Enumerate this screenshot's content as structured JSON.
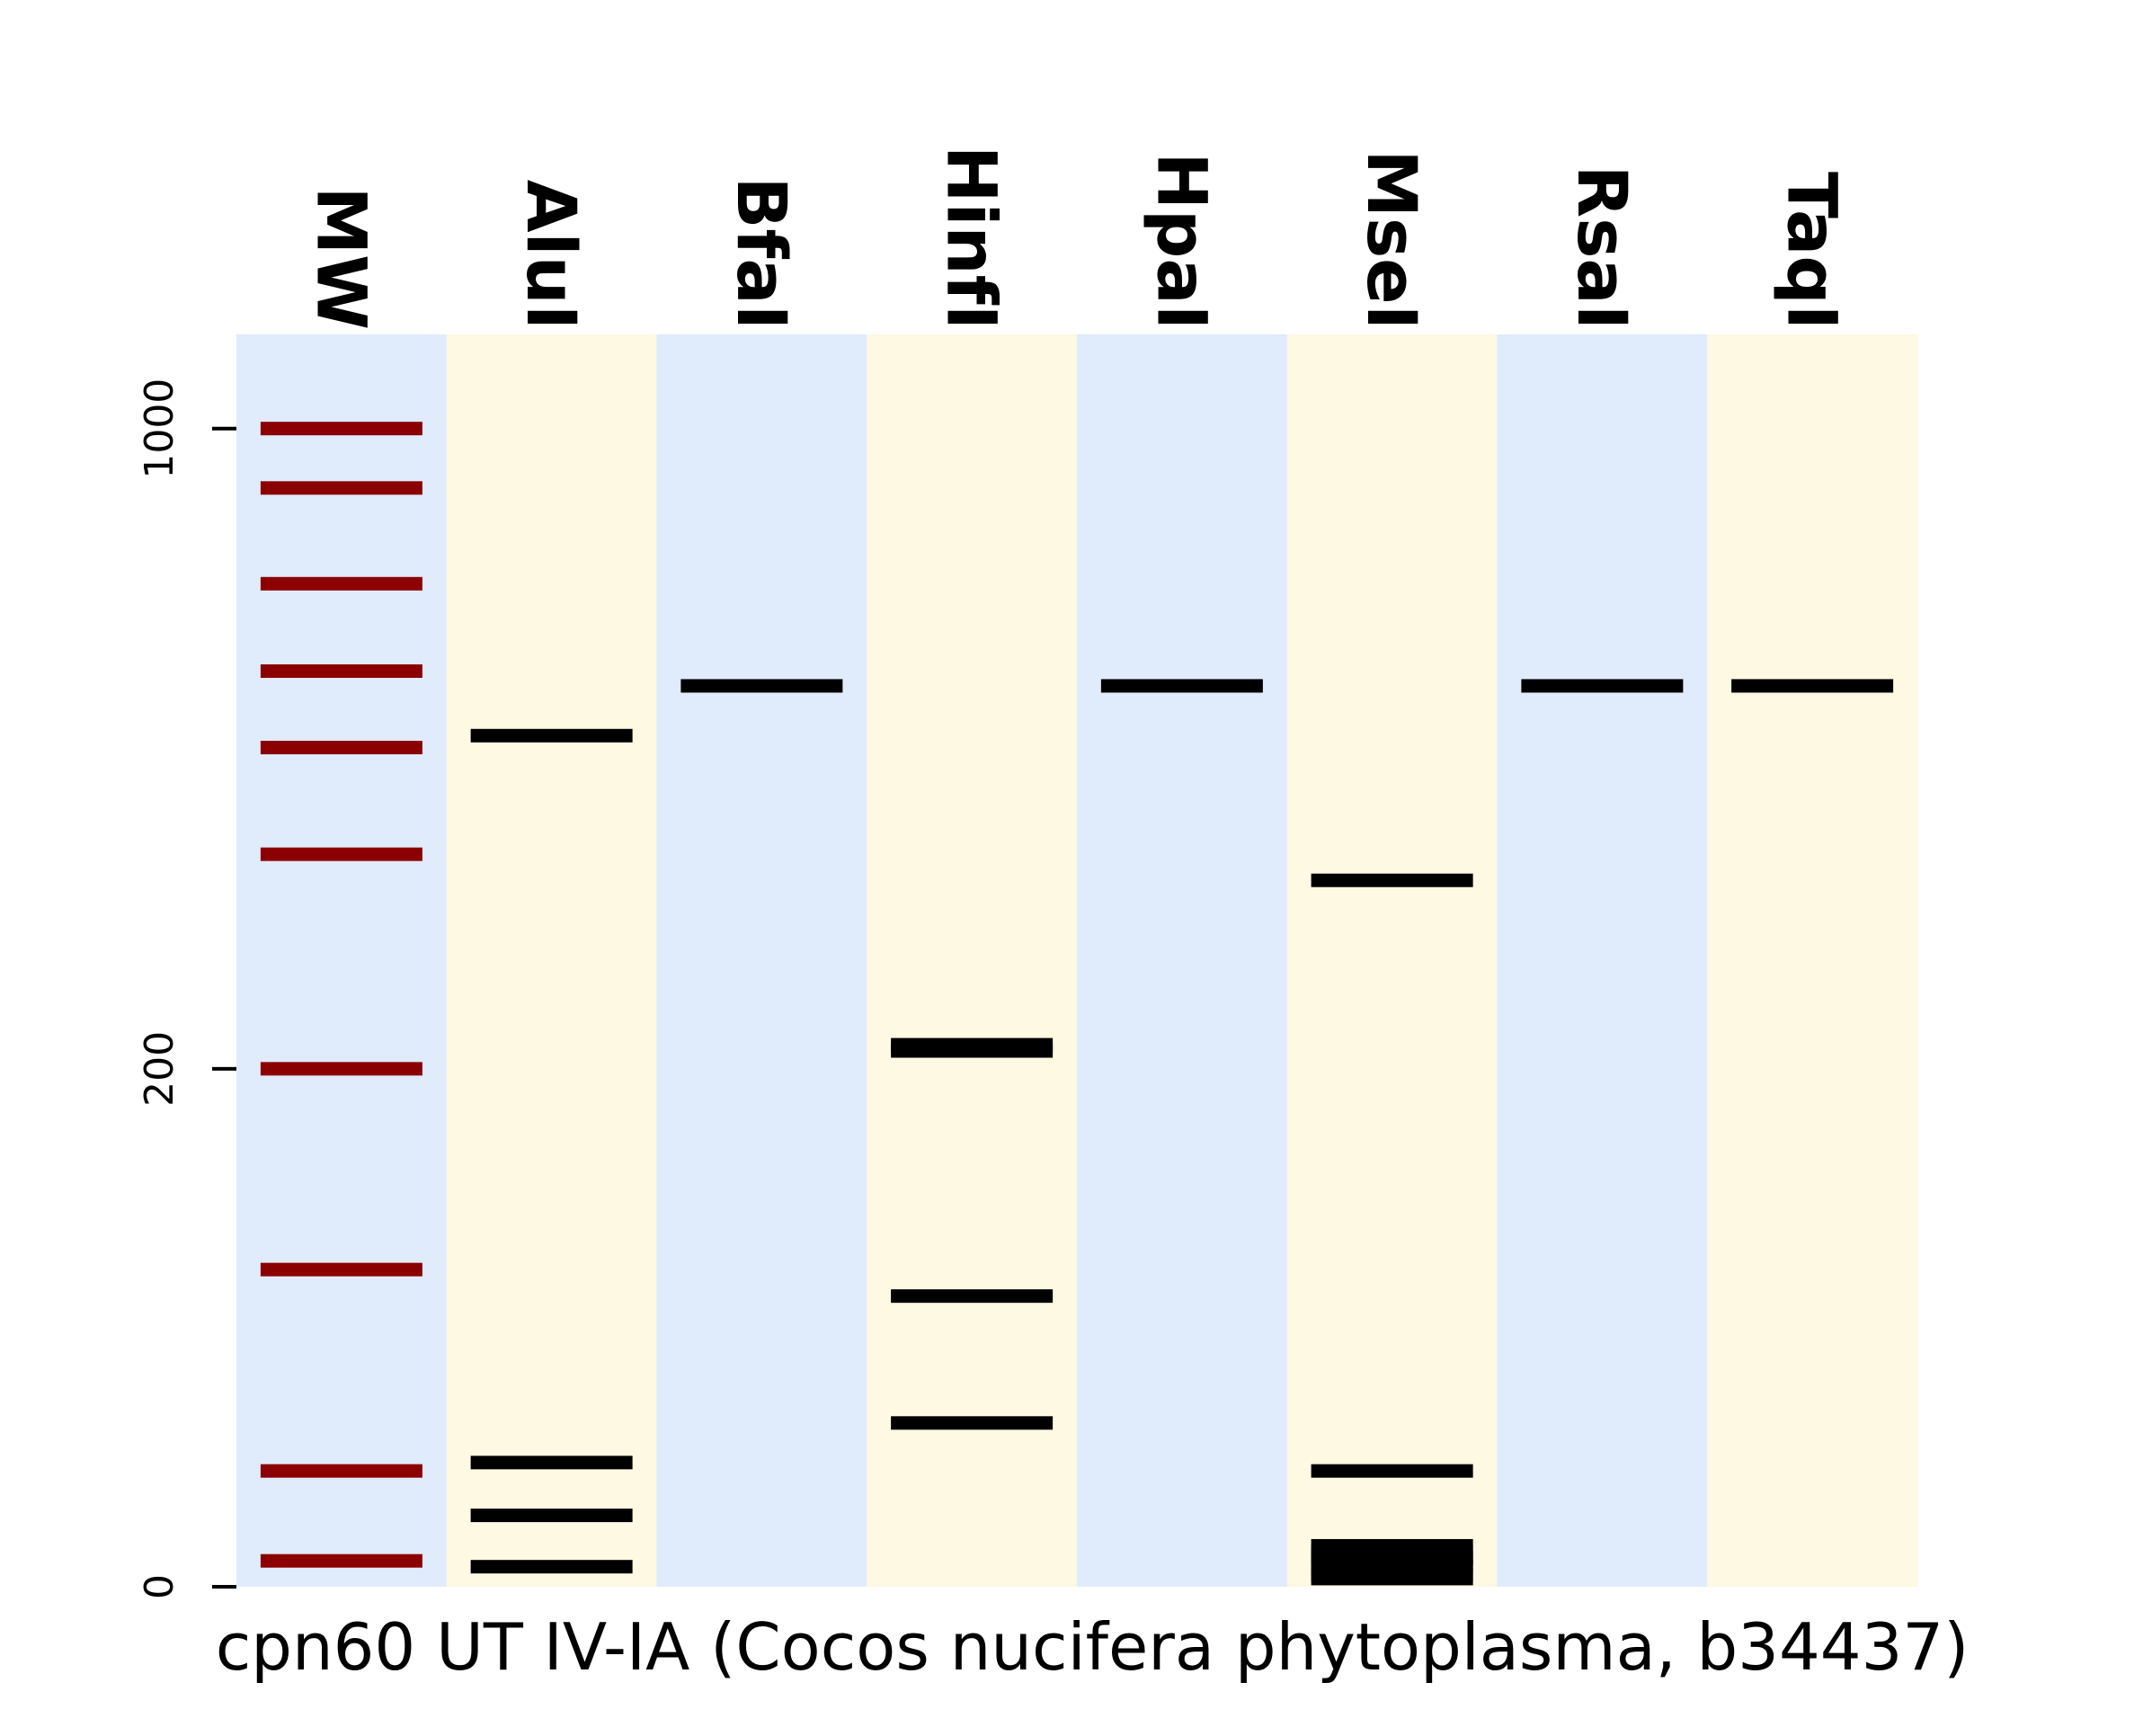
{
  "chart_data": {
    "type": "gel",
    "title": "cpn60 UT IV-IA (Cocos nucifera phytoplasma, b34437)",
    "yscale": "sqrt",
    "ylim": [
      0,
      1200
    ],
    "yticks": [
      {
        "value": 0,
        "label": "0"
      },
      {
        "value": 200,
        "label": "200"
      },
      {
        "value": 1000,
        "label": "1000"
      }
    ],
    "lane_colors": [
      "#e0ebfc",
      "#fdf9e3"
    ],
    "marker_band_color": "#8b0000",
    "band_color": "#000000",
    "lanes": [
      {
        "name": "MW",
        "marker": true,
        "bands": [
          1000,
          900,
          750,
          625,
          525,
          400,
          200,
          75,
          10,
          0.5
        ]
      },
      {
        "name": "AluI",
        "bands": [
          540,
          11.5,
          0.3,
          3.8
        ]
      },
      {
        "name": "BfaI",
        "bands": [
          605
        ]
      },
      {
        "name": "HinfI",
        "bands": [
          219,
          214,
          63,
          20
        ]
      },
      {
        "name": "HpaI",
        "bands": [
          605
        ]
      },
      {
        "name": "MseI",
        "bands": [
          372,
          10,
          1.25,
          0.05,
          0.6,
          0.4,
          0.65,
          0.95,
          0.1,
          0.3
        ]
      },
      {
        "name": "RsaI",
        "bands": [
          605
        ]
      },
      {
        "name": "TaqI",
        "bands": [
          605
        ]
      }
    ]
  }
}
